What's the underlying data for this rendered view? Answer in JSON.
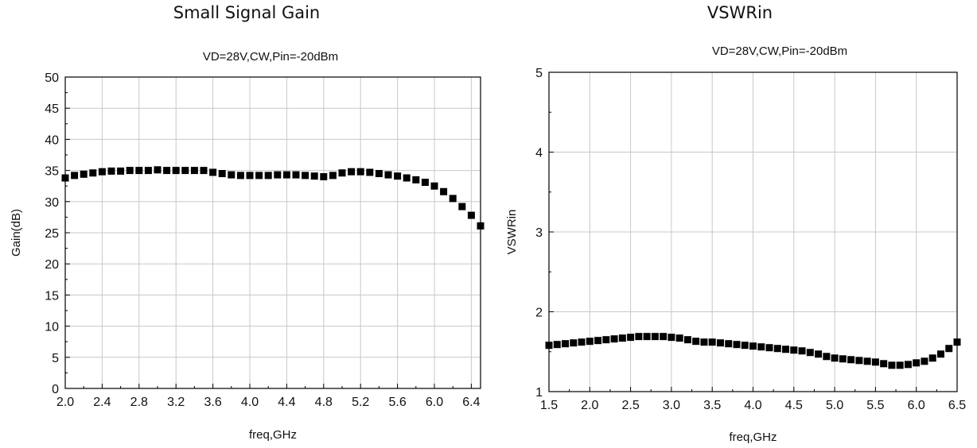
{
  "chart_data": [
    {
      "type": "scatter",
      "title": "Small Signal Gain",
      "subtitle": "VD=28V,CW,Pin=-20dBm",
      "xlabel": "freq,GHz",
      "ylabel": "Gain(dB)",
      "xlim": [
        2.0,
        6.5
      ],
      "ylim": [
        0,
        50
      ],
      "xticks": [
        "2.0",
        "2.4",
        "2.8",
        "3.2",
        "3.6",
        "4.0",
        "4.4",
        "4.8",
        "5.2",
        "5.6",
        "6.0",
        "6.4"
      ],
      "yticks": [
        "0",
        "5",
        "10",
        "15",
        "20",
        "25",
        "30",
        "35",
        "40",
        "45",
        "50"
      ],
      "grid": true,
      "marker": "square",
      "color": "#000000",
      "series": [
        {
          "x": [
            2.0,
            2.1,
            2.2,
            2.3,
            2.4,
            2.5,
            2.6,
            2.7,
            2.8,
            2.9,
            3.0,
            3.1,
            3.2,
            3.3,
            3.4,
            3.5,
            3.6,
            3.7,
            3.8,
            3.9,
            4.0,
            4.1,
            4.2,
            4.3,
            4.4,
            4.5,
            4.6,
            4.7,
            4.8,
            4.9,
            5.0,
            5.1,
            5.2,
            5.3,
            5.4,
            5.5,
            5.6,
            5.7,
            5.8,
            5.9,
            6.0,
            6.1,
            6.2,
            6.3,
            6.4,
            6.5
          ],
          "y": [
            33.8,
            34.2,
            34.4,
            34.6,
            34.8,
            34.9,
            34.9,
            35.0,
            35.0,
            35.0,
            35.1,
            35.0,
            35.0,
            35.0,
            35.0,
            35.0,
            34.7,
            34.5,
            34.3,
            34.2,
            34.2,
            34.2,
            34.2,
            34.3,
            34.3,
            34.3,
            34.2,
            34.1,
            34.0,
            34.2,
            34.6,
            34.8,
            34.8,
            34.7,
            34.5,
            34.3,
            34.1,
            33.8,
            33.5,
            33.1,
            32.5,
            31.6,
            30.5,
            29.2,
            27.8,
            26.1
          ]
        }
      ]
    },
    {
      "type": "scatter",
      "title": "VSWRin",
      "subtitle": "VD=28V,CW,Pin=-20dBm",
      "xlabel": "freq,GHz",
      "ylabel": "VSWRin",
      "xlim": [
        1.5,
        6.5
      ],
      "ylim": [
        1,
        5
      ],
      "xticks": [
        "1.5",
        "2.0",
        "2.5",
        "3.0",
        "3.5",
        "4.0",
        "4.5",
        "5.0",
        "5.5",
        "6.0",
        "6.5"
      ],
      "yticks": [
        "1",
        "2",
        "3",
        "4",
        "5"
      ],
      "grid": true,
      "marker": "square",
      "color": "#000000",
      "series": [
        {
          "x": [
            1.5,
            1.6,
            1.7,
            1.8,
            1.9,
            2.0,
            2.1,
            2.2,
            2.3,
            2.4,
            2.5,
            2.6,
            2.7,
            2.8,
            2.9,
            3.0,
            3.1,
            3.2,
            3.3,
            3.4,
            3.5,
            3.6,
            3.7,
            3.8,
            3.9,
            4.0,
            4.1,
            4.2,
            4.3,
            4.4,
            4.5,
            4.6,
            4.7,
            4.8,
            4.9,
            5.0,
            5.1,
            5.2,
            5.3,
            5.4,
            5.5,
            5.6,
            5.7,
            5.8,
            5.9,
            6.0,
            6.1,
            6.2,
            6.3,
            6.4,
            6.5
          ],
          "y": [
            1.58,
            1.59,
            1.6,
            1.61,
            1.62,
            1.63,
            1.64,
            1.65,
            1.66,
            1.67,
            1.68,
            1.69,
            1.69,
            1.69,
            1.69,
            1.68,
            1.67,
            1.65,
            1.63,
            1.62,
            1.62,
            1.61,
            1.6,
            1.59,
            1.58,
            1.57,
            1.56,
            1.55,
            1.54,
            1.53,
            1.52,
            1.51,
            1.49,
            1.47,
            1.44,
            1.42,
            1.41,
            1.4,
            1.39,
            1.38,
            1.37,
            1.35,
            1.33,
            1.33,
            1.34,
            1.36,
            1.38,
            1.42,
            1.47,
            1.54,
            1.62
          ]
        }
      ]
    }
  ]
}
